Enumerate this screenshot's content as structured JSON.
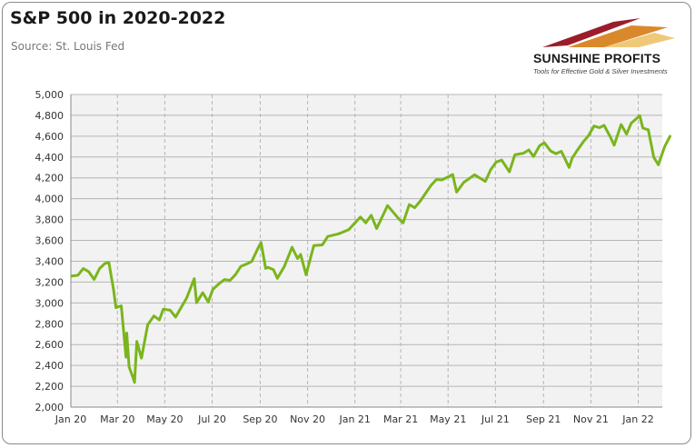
{
  "title": "S&P 500 in 2020-2022",
  "source": "Source: St. Louis Fed",
  "logo": {
    "name": "SUNSHINE PROFITS",
    "tagline": "Tools for Effective Gold & Silver Investments"
  },
  "colors": {
    "line": "#7ab51d",
    "plot_bg": "#f2f2f2",
    "grid": "#b5b5b5"
  },
  "chart_data": {
    "type": "line",
    "title": "S&P 500 in 2020-2022",
    "xlabel": "",
    "ylabel": "",
    "ylim": [
      2000,
      5000
    ],
    "xlim": [
      "2020-01-01",
      "2022-02-01"
    ],
    "grid": true,
    "legend": "none",
    "y_ticks": [
      2000,
      2200,
      2400,
      2600,
      2800,
      3000,
      3200,
      3400,
      3600,
      3800,
      4000,
      4200,
      4400,
      4600,
      4800,
      5000
    ],
    "y_tick_labels": [
      "2,000",
      "2,200",
      "2,400",
      "2,600",
      "2,800",
      "3,000",
      "3,200",
      "3,400",
      "3,600",
      "3,800",
      "4,000",
      "4,200",
      "4,400",
      "4,600",
      "4,800",
      "5,000"
    ],
    "x_ticks": [
      "2020-01-01",
      "2020-03-01",
      "2020-05-01",
      "2020-07-01",
      "2020-09-01",
      "2020-11-01",
      "2021-01-01",
      "2021-03-01",
      "2021-05-01",
      "2021-07-01",
      "2021-09-01",
      "2021-11-01",
      "2022-01-01"
    ],
    "x_tick_labels": [
      "Jan 20",
      "Mar 20",
      "May 20",
      "Jul 20",
      "Sep 20",
      "Nov 20",
      "Jan 21",
      "Mar 21",
      "May 21",
      "Jul 21",
      "Sep 21",
      "Nov 21",
      "Jan 22"
    ],
    "series": [
      {
        "x": [
          "2020-01-02",
          "2020-01-10",
          "2020-01-17",
          "2020-01-24",
          "2020-01-31",
          "2020-02-07",
          "2020-02-14",
          "2020-02-19",
          "2020-02-25",
          "2020-02-28",
          "2020-03-06",
          "2020-03-12",
          "2020-03-13",
          "2020-03-16",
          "2020-03-20",
          "2020-03-23",
          "2020-03-26",
          "2020-04-01",
          "2020-04-09",
          "2020-04-17",
          "2020-04-24",
          "2020-04-29",
          "2020-05-08",
          "2020-05-15",
          "2020-05-22",
          "2020-05-29",
          "2020-06-08",
          "2020-06-11",
          "2020-06-19",
          "2020-06-26",
          "2020-07-02",
          "2020-07-10",
          "2020-07-17",
          "2020-07-24",
          "2020-07-31",
          "2020-08-07",
          "2020-08-14",
          "2020-08-21",
          "2020-08-28",
          "2020-09-02",
          "2020-09-08",
          "2020-09-11",
          "2020-09-18",
          "2020-09-23",
          "2020-10-02",
          "2020-10-09",
          "2020-10-12",
          "2020-10-19",
          "2020-10-23",
          "2020-10-30",
          "2020-11-09",
          "2020-11-20",
          "2020-11-27",
          "2020-12-11",
          "2020-12-24",
          "2021-01-08",
          "2021-01-15",
          "2021-01-22",
          "2021-01-29",
          "2021-02-12",
          "2021-02-26",
          "2021-03-04",
          "2021-03-12",
          "2021-03-19",
          "2021-03-26",
          "2021-04-09",
          "2021-04-16",
          "2021-04-23",
          "2021-05-07",
          "2021-05-12",
          "2021-05-21",
          "2021-06-04",
          "2021-06-18",
          "2021-06-25",
          "2021-07-02",
          "2021-07-09",
          "2021-07-19",
          "2021-07-26",
          "2021-08-06",
          "2021-08-13",
          "2021-08-19",
          "2021-08-27",
          "2021-09-02",
          "2021-09-10",
          "2021-09-17",
          "2021-09-24",
          "2021-10-04",
          "2021-10-08",
          "2021-10-15",
          "2021-10-22",
          "2021-10-29",
          "2021-11-05",
          "2021-11-12",
          "2021-11-18",
          "2021-11-26",
          "2021-12-01",
          "2021-12-10",
          "2021-12-17",
          "2021-12-23",
          "2022-01-03",
          "2022-01-07",
          "2022-01-14",
          "2022-01-21",
          "2022-01-27",
          "2022-02-04",
          "2022-02-11"
        ],
        "y": [
          3258,
          3265,
          3330,
          3300,
          3225,
          3330,
          3380,
          3386,
          3128,
          2954,
          2972,
          2480,
          2711,
          2386,
          2305,
          2237,
          2630,
          2470,
          2790,
          2875,
          2836,
          2940,
          2930,
          2864,
          2955,
          3044,
          3232,
          3002,
          3098,
          3009,
          3130,
          3185,
          3224,
          3216,
          3271,
          3351,
          3373,
          3397,
          3508,
          3580,
          3332,
          3340,
          3319,
          3237,
          3348,
          3477,
          3534,
          3426,
          3465,
          3270,
          3550,
          3557,
          3638,
          3663,
          3703,
          3824,
          3768,
          3841,
          3714,
          3934,
          3811,
          3768,
          3943,
          3913,
          3975,
          4128,
          4185,
          4180,
          4232,
          4063,
          4155,
          4230,
          4166,
          4280,
          4352,
          4370,
          4258,
          4422,
          4437,
          4468,
          4405,
          4509,
          4537,
          4458,
          4432,
          4455,
          4300,
          4391,
          4471,
          4545,
          4605,
          4697,
          4682,
          4704,
          4594,
          4513,
          4712,
          4620,
          4725,
          4796,
          4677,
          4662,
          4397,
          4326,
          4500,
          4600
        ]
      }
    ]
  }
}
